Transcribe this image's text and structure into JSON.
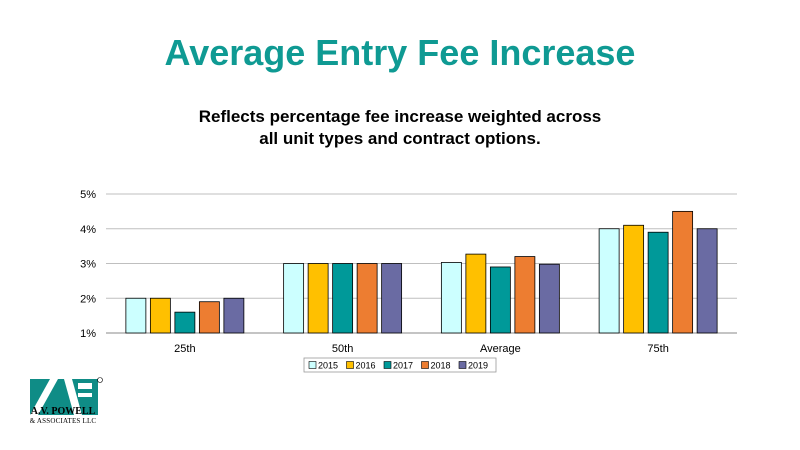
{
  "page": {
    "title": "Average Entry Fee Increase",
    "subtitle_line1": "Reflects percentage fee increase weighted across",
    "subtitle_line2": "all unit types and contract options."
  },
  "logo": {
    "mark": "AVP",
    "name": "A.V. POWELL",
    "sub": "& ASSOCIATES LLC"
  },
  "chart_data": {
    "type": "bar",
    "categories": [
      "25th",
      "50th",
      "Average",
      "75th"
    ],
    "series": [
      {
        "name": "2015",
        "color": "#ccffff",
        "values": [
          2.0,
          3.0,
          3.03,
          4.0
        ]
      },
      {
        "name": "2016",
        "color": "#ffc000",
        "values": [
          2.0,
          3.0,
          3.27,
          4.1
        ]
      },
      {
        "name": "2017",
        "color": "#009999",
        "values": [
          1.6,
          3.0,
          2.9,
          3.9
        ]
      },
      {
        "name": "2018",
        "color": "#ed7d31",
        "values": [
          1.9,
          3.0,
          3.2,
          4.5
        ]
      },
      {
        "name": "2019",
        "color": "#6a6ba3",
        "values": [
          2.0,
          3.0,
          2.98,
          4.0
        ]
      }
    ],
    "yticks": [
      "1%",
      "2%",
      "3%",
      "4%",
      "5%"
    ],
    "ylim": [
      1,
      5
    ],
    "grid": true,
    "legend": "bottom"
  }
}
